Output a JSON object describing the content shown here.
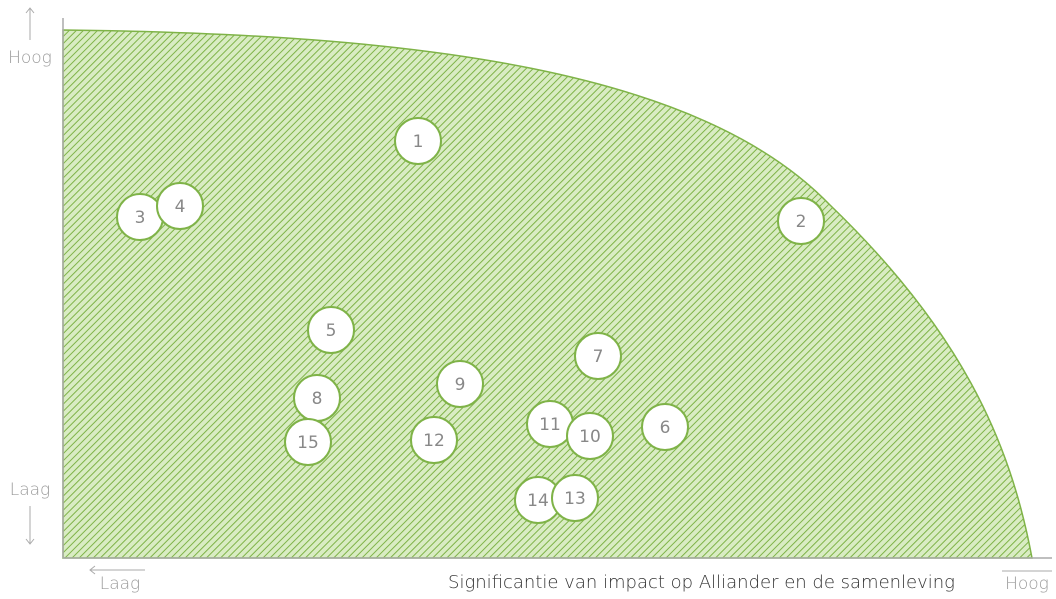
{
  "y_axis": {
    "high": "Hoog",
    "low": "Laag"
  },
  "x_axis": {
    "low": "Laag",
    "label": "Significantie van impact op Alliander en de samenleving",
    "high": "Hoog"
  },
  "nodes": [
    {
      "label": "1"
    },
    {
      "label": "2"
    },
    {
      "label": "3"
    },
    {
      "label": "4"
    },
    {
      "label": "5"
    },
    {
      "label": "6"
    },
    {
      "label": "7"
    },
    {
      "label": "8"
    },
    {
      "label": "9"
    },
    {
      "label": "10"
    },
    {
      "label": "11"
    },
    {
      "label": "12"
    },
    {
      "label": "13"
    },
    {
      "label": "14"
    },
    {
      "label": "15"
    }
  ]
}
